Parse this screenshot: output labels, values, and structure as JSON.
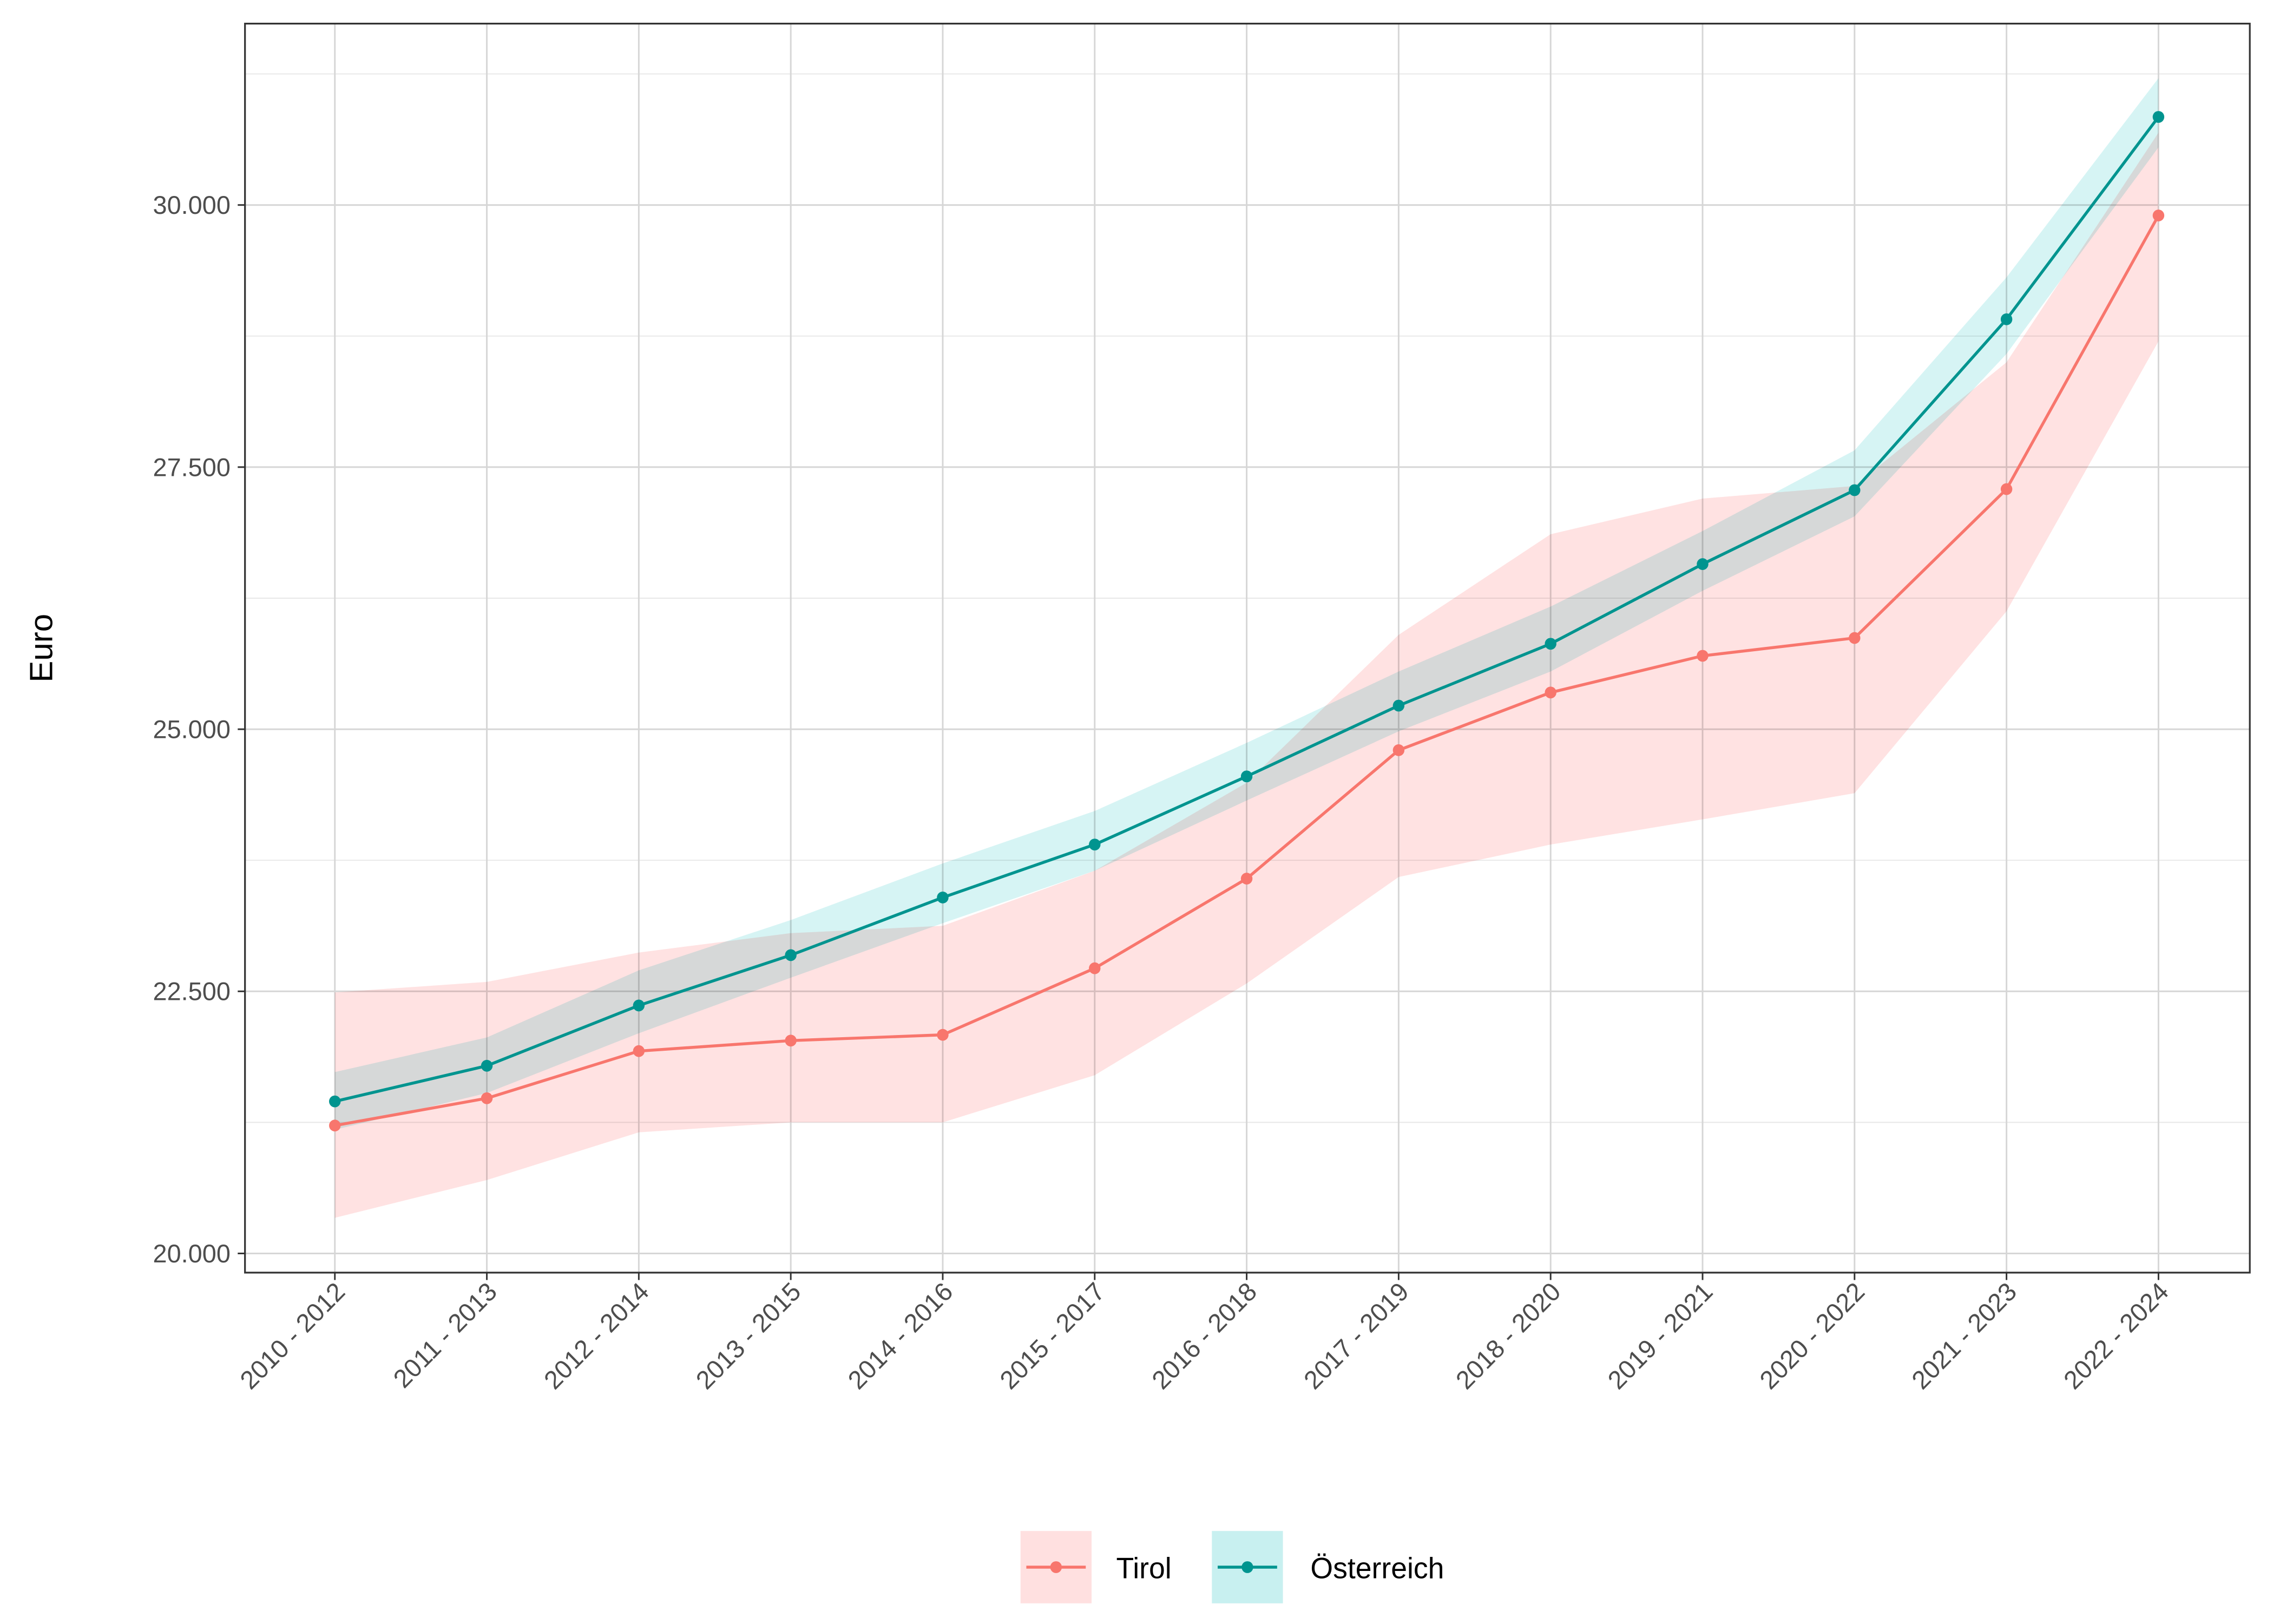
{
  "chart_data": {
    "type": "line",
    "title": "",
    "xlabel": "",
    "ylabel": "Euro",
    "categories": [
      "2010 - 2012",
      "2011 - 2013",
      "2012 - 2014",
      "2013 - 2015",
      "2014 - 2016",
      "2015 - 2017",
      "2016 - 2018",
      "2017 - 2019",
      "2018 - 2020",
      "2019 - 2021",
      "2020 - 2022",
      "2021 - 2023",
      "2022 - 2024"
    ],
    "ylim": [
      19817,
      31730
    ],
    "yticks": [
      20000,
      22500,
      25000,
      27500,
      30000
    ],
    "ytick_labels": [
      "20.000",
      "22.500",
      "25.000",
      "27.500",
      "30.000"
    ],
    "grid": true,
    "legend_position": "bottom",
    "series": [
      {
        "name": "Tirol",
        "color": "#F8766D",
        "band_color": "#FFE0E0",
        "values": [
          21220,
          21480,
          21930,
          22030,
          22085,
          22720,
          23575,
          24800,
          25350,
          25700,
          25870,
          27290,
          29900
        ],
        "lower": [
          20340,
          20700,
          21155,
          21250,
          21250,
          21700,
          22575,
          23590,
          23900,
          24140,
          24390,
          26125,
          28700
        ],
        "upper": [
          22490,
          22590,
          22870,
          23055,
          23125,
          23650,
          24490,
          25900,
          26860,
          27200,
          27320,
          28500,
          30690
        ]
      },
      {
        "name": "Österreich",
        "color": "#00948F",
        "band_color": "#C8F0F0",
        "values": [
          21450,
          21790,
          22365,
          22845,
          23395,
          23900,
          24550,
          25225,
          25815,
          26575,
          27280,
          28910,
          30840
        ],
        "lower": [
          21180,
          21530,
          22100,
          22630,
          23150,
          23650,
          24320,
          24980,
          25550,
          26320,
          27030,
          28580,
          30550
        ],
        "upper": [
          21730,
          22060,
          22700,
          23180,
          23720,
          24220,
          24870,
          25550,
          26170,
          26890,
          27660,
          29310,
          31210
        ]
      }
    ]
  }
}
